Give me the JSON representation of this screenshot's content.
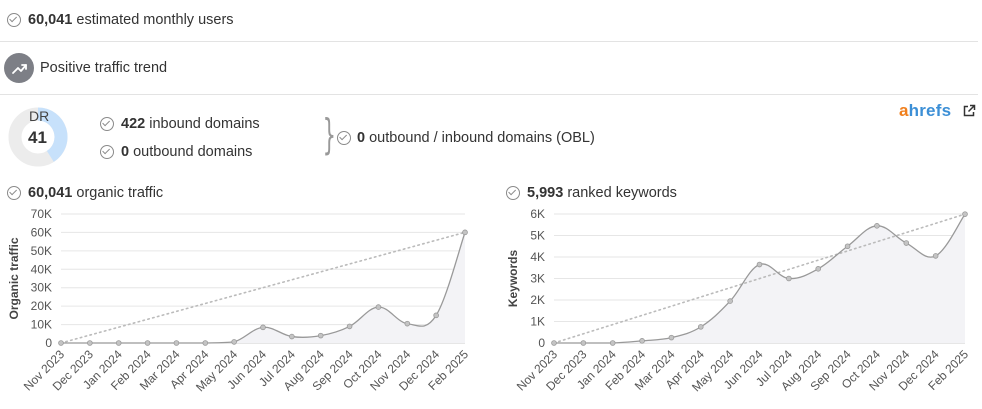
{
  "summary": {
    "monthly_users_value": "60,041",
    "monthly_users_text": "estimated monthly users",
    "trend_text": "Positive traffic trend"
  },
  "dr": {
    "label": "DR",
    "value": "41",
    "fill_fraction": 0.41
  },
  "domains": {
    "inbound_value": "422",
    "inbound_text": "inbound domains",
    "outbound_value": "0",
    "outbound_text": "outbound domains",
    "obl_value": "0",
    "obl_text": "outbound / inbound domains (OBL)"
  },
  "brand": {
    "prefix": "a",
    "rest": "hrefs",
    "link_icon": "external-link-icon"
  },
  "colors": {
    "dr_fill": "#c7e1fb",
    "dr_track": "#ececec",
    "line": "#999999",
    "trend_line": "#bbbbbb",
    "brand_orange": "#f07f1d",
    "brand_blue": "#3c8fd6"
  },
  "chart_data": [
    {
      "type": "area",
      "header_value": "60,041",
      "header_text": "organic traffic",
      "ylabel": "Organic traffic",
      "ylim": [
        0,
        70000
      ],
      "yticks": [
        "0",
        "10K",
        "20K",
        "30K",
        "40K",
        "50K",
        "60K",
        "70K"
      ],
      "categories": [
        "Nov 2023",
        "Dec 2023",
        "Jan 2024",
        "Feb 2024",
        "Mar 2024",
        "Apr 2024",
        "May 2024",
        "Jun 2024",
        "Jul 2024",
        "Aug 2024",
        "Sep 2024",
        "Oct 2024",
        "Nov 2024",
        "Dec 2024",
        "Feb 2025"
      ],
      "values": [
        0,
        0,
        0,
        0,
        0,
        0,
        600,
        8500,
        3500,
        4000,
        9000,
        19500,
        10500,
        15000,
        60041
      ],
      "trendline": [
        0,
        60041
      ],
      "grid": true
    },
    {
      "type": "area",
      "header_value": "5,993",
      "header_text": "ranked keywords",
      "ylabel": "Keywords",
      "ylim": [
        0,
        6000
      ],
      "yticks": [
        "0",
        "1K",
        "2K",
        "3K",
        "4K",
        "5K",
        "6K"
      ],
      "categories": [
        "Nov 2023",
        "Dec 2023",
        "Jan 2024",
        "Feb 2024",
        "Mar 2024",
        "Apr 2024",
        "May 2024",
        "Jun 2024",
        "Jul 2024",
        "Aug 2024",
        "Sep 2024",
        "Oct 2024",
        "Nov 2024",
        "Dec 2024",
        "Feb 2025"
      ],
      "values": [
        0,
        0,
        0,
        100,
        250,
        750,
        1950,
        3650,
        3000,
        3450,
        4500,
        5450,
        4650,
        4050,
        5993
      ],
      "trendline": [
        0,
        5993
      ],
      "grid": true
    }
  ]
}
